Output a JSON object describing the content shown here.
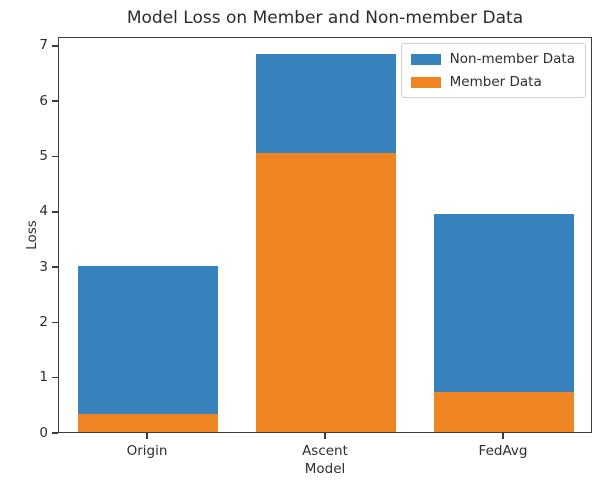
{
  "figure": {
    "background": "#ffffff",
    "text_color": "#2e2e2e",
    "spine_color": "#3d3d3d"
  },
  "chart_data": {
    "type": "bar",
    "bar_style": "overlapping: Member Data bar drawn in front of Non-member Data bar, both from baseline 0",
    "title": "Model Loss on Member and Non-member Data",
    "xlabel": "Model",
    "ylabel": "Loss",
    "categories": [
      "Origin",
      "Ascent",
      "FedAvg"
    ],
    "series": [
      {
        "name": "Non-member Data",
        "color": "#3781bc",
        "values": [
          3.0,
          6.83,
          3.95
        ]
      },
      {
        "name": "Member Data",
        "color": "#ef8522",
        "values": [
          0.32,
          5.05,
          0.73
        ]
      }
    ],
    "ylim": [
      0,
      7.16
    ],
    "yticks": [
      0,
      1,
      2,
      3,
      4,
      5,
      6,
      7
    ],
    "grid": false,
    "legend": {
      "position": "upper right",
      "entries": [
        "Non-member Data",
        "Member Data"
      ]
    }
  }
}
